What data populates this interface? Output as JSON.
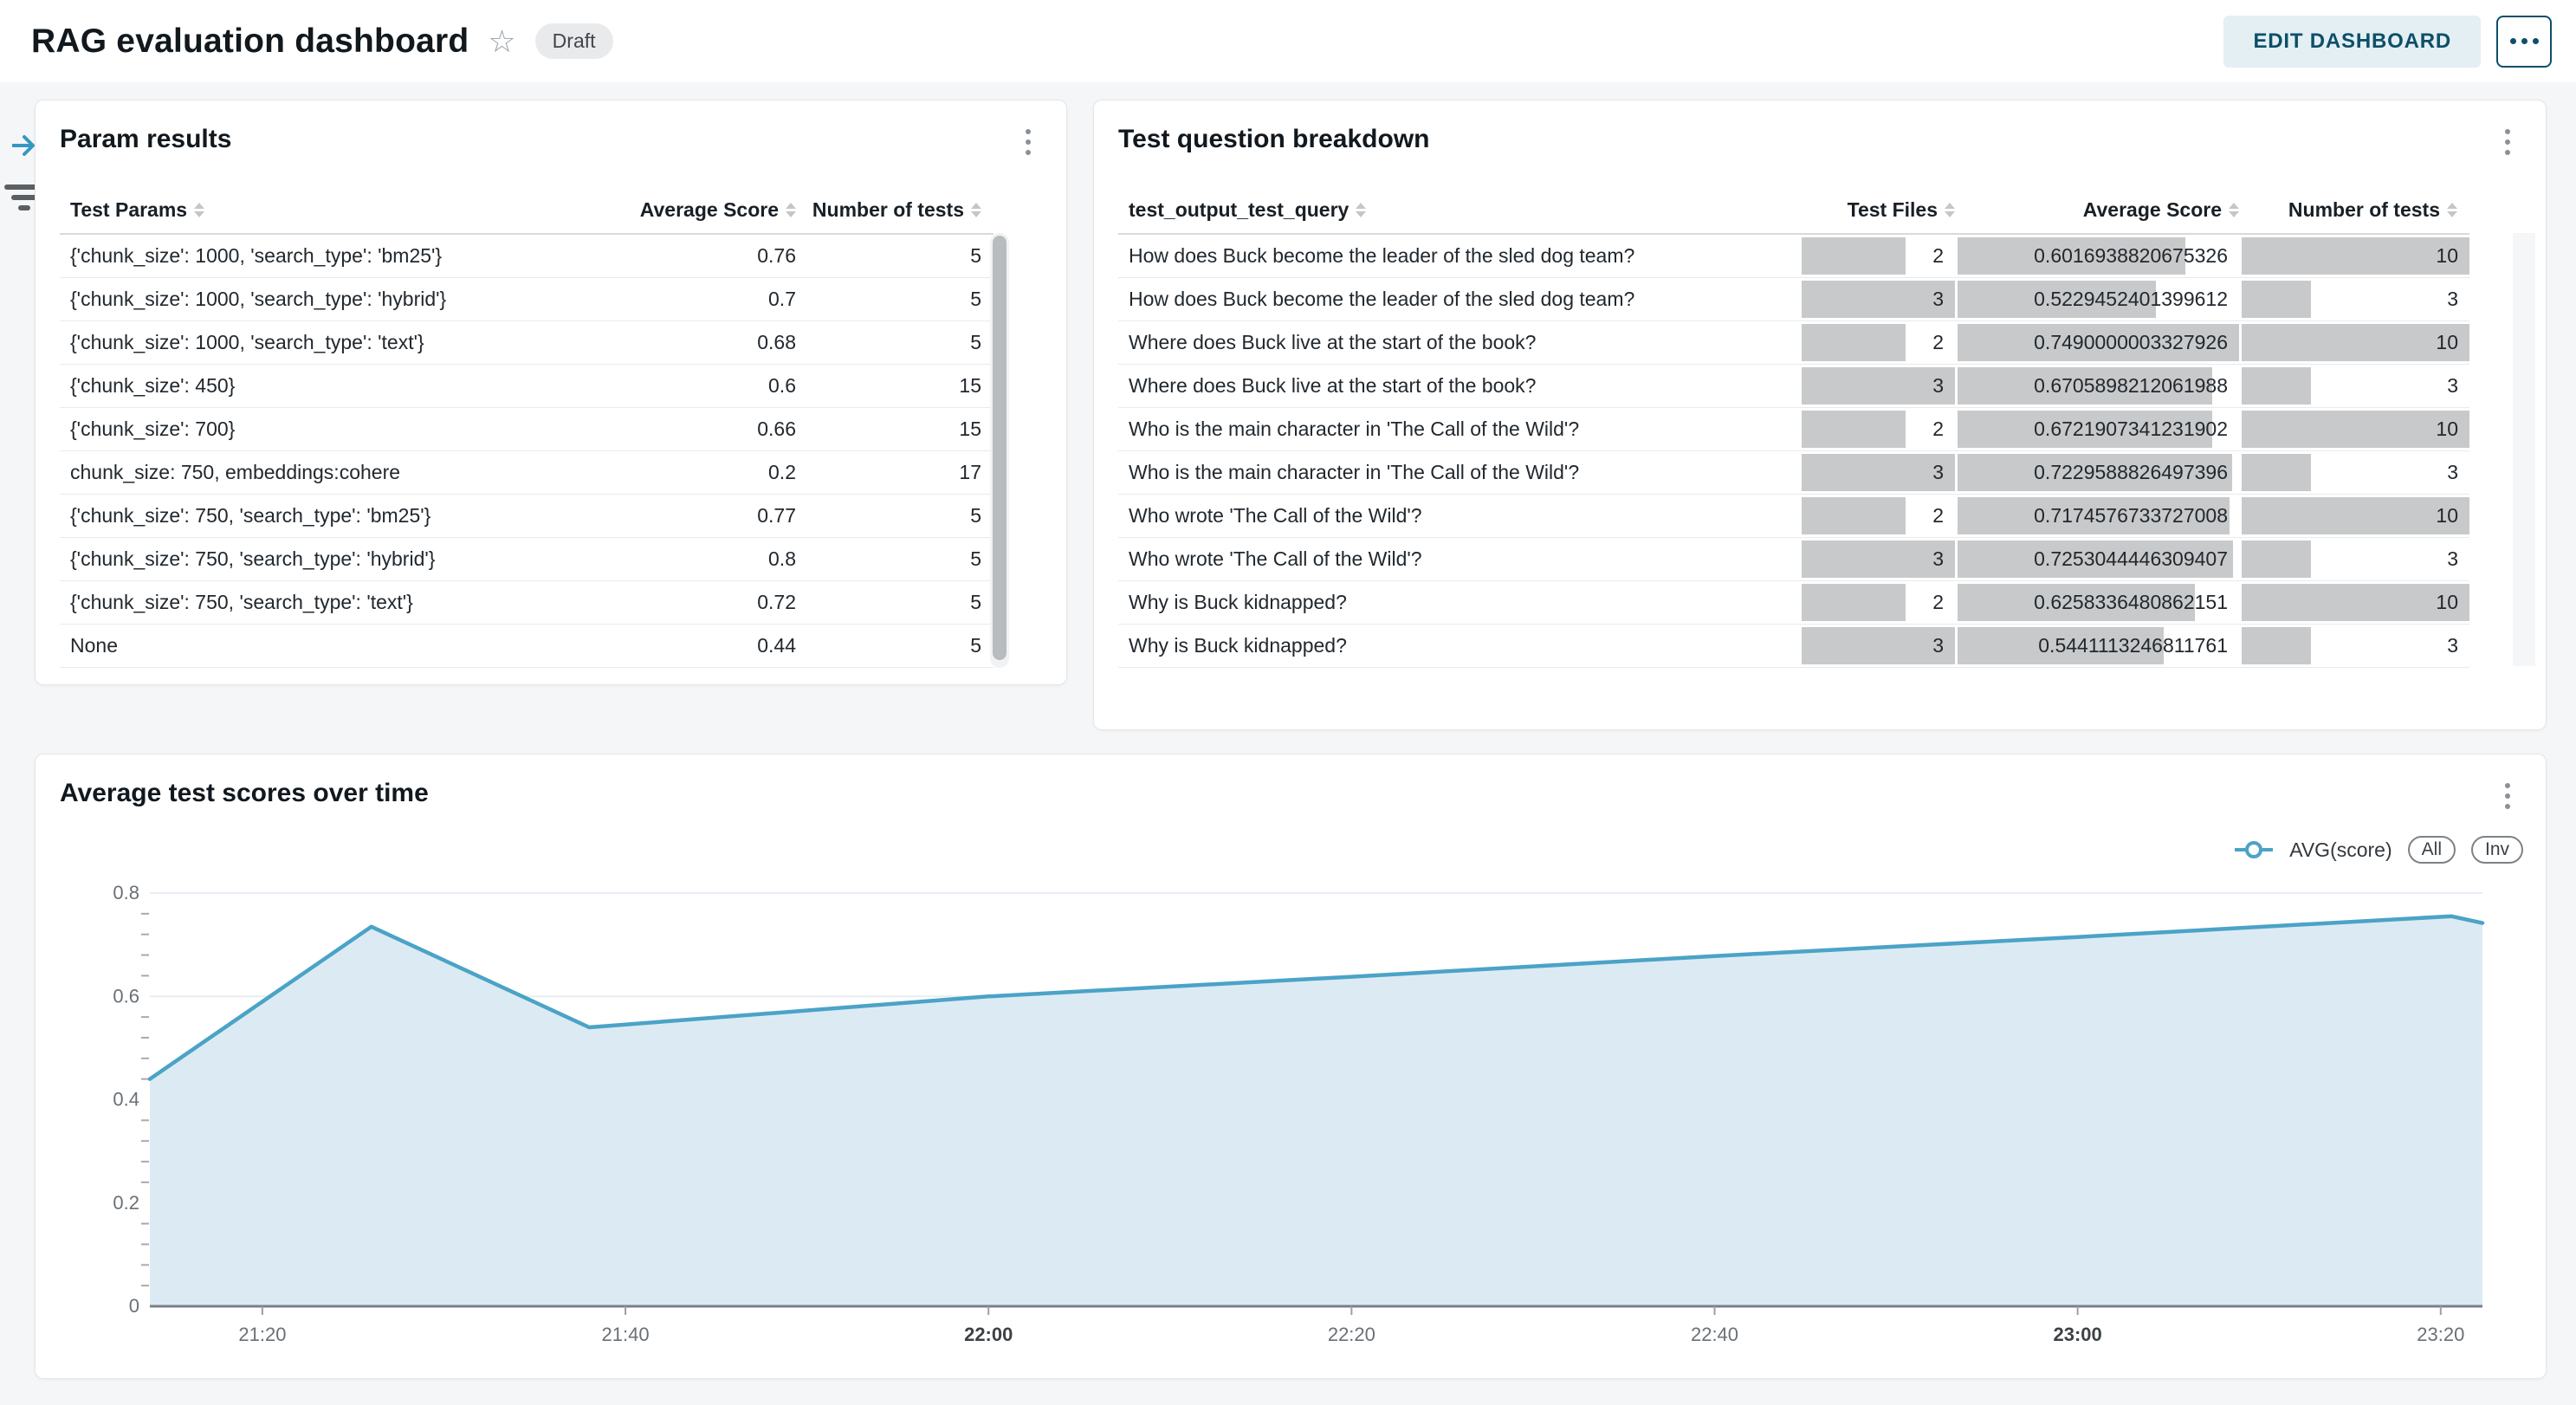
{
  "header": {
    "title": "RAG evaluation dashboard",
    "status_badge": "Draft",
    "edit_button": "EDIT DASHBOARD",
    "accent_color": "#0d4f68"
  },
  "side_icons": [
    {
      "name": "collapse-sidebar-icon",
      "color": "#3598c2"
    },
    {
      "name": "filter-icon",
      "color": "#595f63"
    }
  ],
  "param_results": {
    "title": "Param results",
    "columns": [
      "Test Params",
      "Average Score",
      "Number of tests"
    ],
    "rows": [
      [
        "{'chunk_size': 1000, 'search_type': 'bm25'}",
        "0.76",
        "5"
      ],
      [
        "{'chunk_size': 1000, 'search_type': 'hybrid'}",
        "0.7",
        "5"
      ],
      [
        "{'chunk_size': 1000, 'search_type': 'text'}",
        "0.68",
        "5"
      ],
      [
        "{'chunk_size': 450}",
        "0.6",
        "15"
      ],
      [
        "{'chunk_size': 700}",
        "0.66",
        "15"
      ],
      [
        "chunk_size: 750, embeddings:cohere",
        "0.2",
        "17"
      ],
      [
        "{'chunk_size': 750, 'search_type': 'bm25'}",
        "0.77",
        "5"
      ],
      [
        "{'chunk_size': 750, 'search_type': 'hybrid'}",
        "0.8",
        "5"
      ],
      [
        "{'chunk_size': 750, 'search_type': 'text'}",
        "0.72",
        "5"
      ],
      [
        "None",
        "0.44",
        "5"
      ]
    ]
  },
  "question_breakdown": {
    "title": "Test question breakdown",
    "columns": [
      "test_output_test_query",
      "Test Files",
      "Average Score",
      "Number of tests"
    ],
    "bar_color": "#c8c9ca",
    "bar_max": {
      "files": 3,
      "score": 0.749,
      "tests": 10
    },
    "rows": [
      [
        "How does Buck become the leader of the sled dog team?",
        "2",
        "0.6016938820675326",
        "10"
      ],
      [
        "How does Buck become the leader of the sled dog team?",
        "3",
        "0.5229452401399612",
        "3"
      ],
      [
        "Where does Buck live at the start of the book?",
        "2",
        "0.7490000003327926",
        "10"
      ],
      [
        "Where does Buck live at the start of the book?",
        "3",
        "0.6705898212061988",
        "3"
      ],
      [
        "Who is the main character in 'The Call of the Wild'?",
        "2",
        "0.6721907341231902",
        "10"
      ],
      [
        "Who is the main character in 'The Call of the Wild'?",
        "3",
        "0.7229588826497396",
        "3"
      ],
      [
        "Who wrote 'The Call of the Wild'?",
        "2",
        "0.7174576733727008",
        "10"
      ],
      [
        "Who wrote 'The Call of the Wild'?",
        "3",
        "0.7253044446309407",
        "3"
      ],
      [
        "Why is Buck kidnapped?",
        "2",
        "0.6258336480862151",
        "10"
      ],
      [
        "Why is Buck kidnapped?",
        "3",
        "0.5441113246811761",
        "3"
      ]
    ]
  },
  "chart": {
    "title": "Average test scores over time",
    "legend_label": "AVG(score)",
    "buttons": [
      "All",
      "Inv"
    ]
  },
  "chart_data": {
    "type": "area",
    "title": "Average test scores over time",
    "xlabel": "",
    "ylabel": "",
    "ylim": [
      0,
      0.8
    ],
    "y_ticks": [
      0.8,
      0.6,
      0.4,
      0.2,
      0
    ],
    "y_tick_labels": [
      "0.8",
      "0.6",
      "0.4",
      "0.2",
      "0"
    ],
    "y_minor_step": 0.04,
    "grid": true,
    "legend_position": "top-right",
    "line_color": "#4ba3c7",
    "fill_color": "#dcebf3",
    "x_domain_minutes": [
      0,
      128.5
    ],
    "x_ticks": [
      {
        "label": "21:20",
        "minutes": 6.2,
        "bold": false
      },
      {
        "label": "21:40",
        "minutes": 26.2,
        "bold": false
      },
      {
        "label": "22:00",
        "minutes": 46.2,
        "bold": true
      },
      {
        "label": "22:20",
        "minutes": 66.2,
        "bold": false
      },
      {
        "label": "22:40",
        "minutes": 86.2,
        "bold": false
      },
      {
        "label": "23:00",
        "minutes": 106.2,
        "bold": true
      },
      {
        "label": "23:20",
        "minutes": 126.2,
        "bold": false
      }
    ],
    "series": [
      {
        "name": "AVG(score)",
        "points": [
          {
            "time": "21:14",
            "minutes": 0,
            "value": 0.44
          },
          {
            "time": "21:26",
            "minutes": 12.2,
            "value": 0.735
          },
          {
            "time": "21:38",
            "minutes": 24.2,
            "value": 0.54
          },
          {
            "time": "22:00",
            "minutes": 46.2,
            "value": 0.6
          },
          {
            "time": "22:20",
            "minutes": 66.2,
            "value": 0.638
          },
          {
            "time": "22:40",
            "minutes": 86.2,
            "value": 0.678
          },
          {
            "time": "23:00",
            "minutes": 106.2,
            "value": 0.715
          },
          {
            "time": "23:19",
            "minutes": 126.8,
            "value": 0.755
          },
          {
            "time": "23:22",
            "minutes": 128.5,
            "value": 0.742
          }
        ]
      }
    ]
  }
}
